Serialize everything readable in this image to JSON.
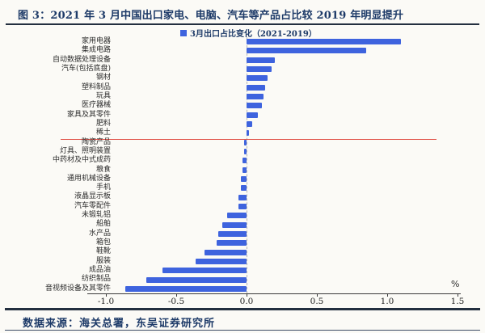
{
  "figure": {
    "title": "图 3：2021 年 3 月中国出口家电、电脑、汽车等产品占比较 2019 年明显提升",
    "source": "数据来源：海关总署，东吴证券研究所",
    "unit_label": "%"
  },
  "colors": {
    "navy": "#1d3a68",
    "rule": "#232f3f",
    "bar_blue": "#3e63de",
    "red_line": "#e2574d",
    "axis": "#3a3a3a"
  },
  "chart_data": {
    "type": "bar",
    "orientation": "horizontal",
    "title": "图 3：2021 年 3 月中国出口家电、电脑、汽车等产品占比较 2019 年明显提升",
    "legend": "3月出口占比变化（2021-2019）",
    "legend_position": "top",
    "xlabel": "%",
    "ylabel": "",
    "xlim": [
      -1.25,
      1.55
    ],
    "x_ticks": [
      -1.0,
      -0.5,
      0.0,
      0.5,
      1.0,
      1.5
    ],
    "grid": false,
    "annotation": "red horizontal line separating positive-change products (above) from negative-change products (below)",
    "separator_after_index": 10,
    "categories": [
      "家用电器",
      "集成电路",
      "自动数据处理设备",
      "汽车(包括底盘)",
      "钢材",
      "塑料制品",
      "玩具",
      "医疗器械",
      "家具及其零件",
      "肥料",
      "稀土",
      "陶瓷产品",
      "灯具、照明装置",
      "中药材及中式成药",
      "粮食",
      "通用机械设备",
      "手机",
      "液晶显示板",
      "汽车零配件",
      "未锻轧铝",
      "船舶",
      "水产品",
      "箱包",
      "鞋靴",
      "服装",
      "成品油",
      "纺织制品",
      "音视频设备及其零件"
    ],
    "values": [
      1.1,
      0.85,
      0.2,
      0.18,
      0.15,
      0.13,
      0.12,
      0.11,
      0.08,
      0.04,
      0.02,
      -0.02,
      -0.02,
      -0.03,
      -0.03,
      -0.04,
      -0.04,
      -0.06,
      -0.06,
      -0.14,
      -0.17,
      -0.2,
      -0.21,
      -0.3,
      -0.36,
      -0.6,
      -0.71,
      -0.86
    ]
  }
}
